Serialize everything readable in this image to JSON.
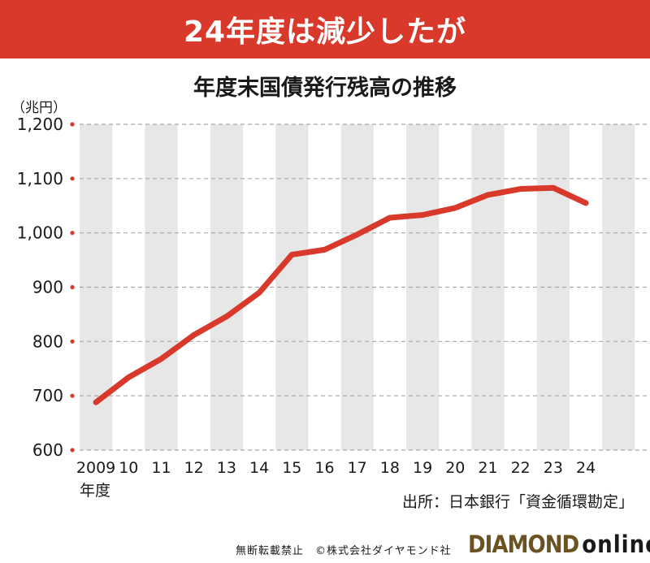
{
  "banner": {
    "title": "24年度は減少したが"
  },
  "source": "出所：日本銀行「資金循環勘定」",
  "footer": {
    "copyright": "無断転載禁止　©株式会社ダイヤモンド社",
    "brand_main": "DIAMOND",
    "brand_sub": "online"
  },
  "colors": {
    "banner": "#d8392b",
    "line": "#d8392b",
    "stripe": "#e7e7e7",
    "brand": "#6b5222"
  },
  "chart_data": {
    "type": "line",
    "title": "年度末国債発行残高の推移",
    "ylabel": "（兆円）",
    "xlabel": "年度",
    "ylim": [
      600,
      1200
    ],
    "y_ticks": [
      "600",
      "700",
      "800",
      "900",
      "1,000",
      "1,100",
      "1,200"
    ],
    "grid": true,
    "categories": [
      "2009",
      "10",
      "11",
      "12",
      "13",
      "14",
      "15",
      "16",
      "17",
      "18",
      "19",
      "20",
      "21",
      "22",
      "23",
      "24"
    ],
    "series": [
      {
        "values": [
          688,
          734,
          768,
          812,
          846,
          890,
          960,
          969,
          997,
          1028,
          1033,
          1046,
          1070,
          1081,
          1083,
          1055
        ]
      }
    ]
  }
}
